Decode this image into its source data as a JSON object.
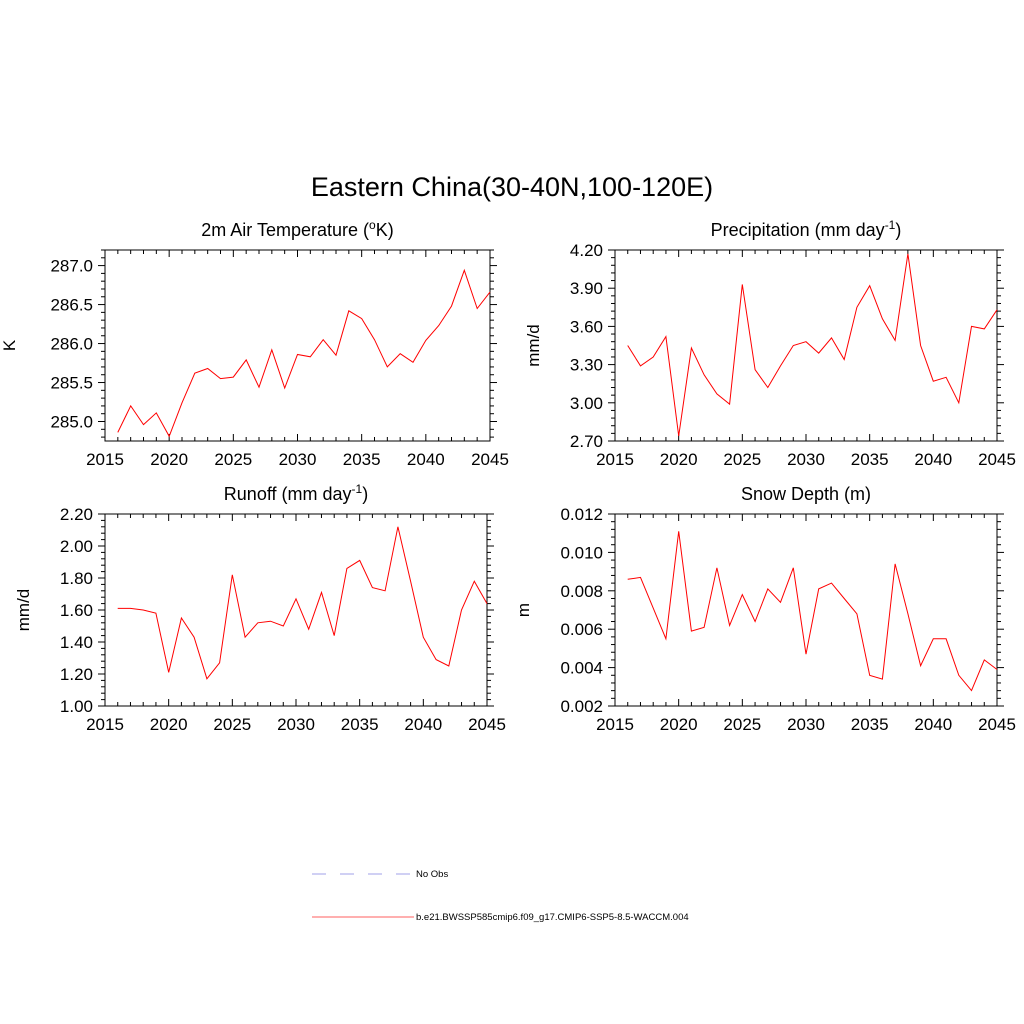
{
  "title": "Eastern China(30-40N,100-120E)",
  "chart_data": [
    {
      "id": "temp",
      "type": "line",
      "title": "2m Air Temperature (",
      "title_sup": "o",
      "title_end": "K)",
      "ylabel": "K",
      "xlim": [
        2015,
        2045
      ],
      "ylim": [
        284.75,
        287.2
      ],
      "yticks": [
        285.0,
        285.5,
        286.0,
        286.5,
        287.0
      ],
      "ytick_labels": [
        "285.0",
        "285.5",
        "286.0",
        "286.5",
        "287.0"
      ],
      "xticks": [
        2015,
        2020,
        2025,
        2030,
        2035,
        2040,
        2045
      ],
      "xtick_labels": [
        "2015",
        "2020",
        "2025",
        "2030",
        "2035",
        "2040",
        "2045"
      ],
      "series": [
        {
          "name": "b.e21.BWSSP585cmip6.f09_g17.CMIP6-SSP5-8.5-WACCM.004",
          "color": "#ff0000",
          "x": [
            2016,
            2017,
            2018,
            2019,
            2020,
            2021,
            2022,
            2023,
            2024,
            2025,
            2026,
            2027,
            2028,
            2029,
            2030,
            2031,
            2032,
            2033,
            2034,
            2035,
            2036,
            2037,
            2038,
            2039,
            2040,
            2041,
            2042,
            2043,
            2044,
            2045
          ],
          "values": [
            284.86,
            285.2,
            284.96,
            285.11,
            284.81,
            285.24,
            285.62,
            285.68,
            285.55,
            285.57,
            285.79,
            285.44,
            285.92,
            285.43,
            285.86,
            285.83,
            286.05,
            285.85,
            286.42,
            286.32,
            286.05,
            285.7,
            285.87,
            285.76,
            286.04,
            286.23,
            286.48,
            286.94,
            286.45,
            286.66
          ]
        }
      ]
    },
    {
      "id": "precip",
      "type": "line",
      "title": "Precipitation (mm day",
      "title_sup": "-1",
      "title_end": ")",
      "ylabel": "mm/d",
      "xlim": [
        2015,
        2045
      ],
      "ylim": [
        2.7,
        4.2
      ],
      "yticks": [
        2.7,
        3.0,
        3.3,
        3.6,
        3.9,
        4.2
      ],
      "ytick_labels": [
        "2.70",
        "3.00",
        "3.30",
        "3.60",
        "3.90",
        "4.20"
      ],
      "xticks": [
        2015,
        2020,
        2025,
        2030,
        2035,
        2040,
        2045
      ],
      "xtick_labels": [
        "2015",
        "2020",
        "2025",
        "2030",
        "2035",
        "2040",
        "2045"
      ],
      "series": [
        {
          "name": "b.e21.BWSSP585cmip6.f09_g17.CMIP6-SSP5-8.5-WACCM.004",
          "color": "#ff0000",
          "x": [
            2016,
            2017,
            2018,
            2019,
            2020,
            2021,
            2022,
            2023,
            2024,
            2025,
            2026,
            2027,
            2028,
            2029,
            2030,
            2031,
            2032,
            2033,
            2034,
            2035,
            2036,
            2037,
            2038,
            2039,
            2040,
            2041,
            2042,
            2043,
            2044,
            2045
          ],
          "values": [
            3.45,
            3.29,
            3.36,
            3.52,
            2.74,
            3.43,
            3.22,
            3.07,
            2.99,
            3.93,
            3.26,
            3.12,
            3.29,
            3.45,
            3.48,
            3.39,
            3.51,
            3.34,
            3.75,
            3.92,
            3.66,
            3.49,
            4.17,
            3.45,
            3.17,
            3.2,
            3.0,
            3.6,
            3.58,
            3.73
          ]
        }
      ]
    },
    {
      "id": "runoff",
      "type": "line",
      "title": "Runoff (mm day",
      "title_sup": "-1",
      "title_end": ")",
      "ylabel": "mm/d",
      "xlim": [
        2015,
        2045
      ],
      "ylim": [
        1.0,
        2.2
      ],
      "yticks": [
        1.0,
        1.2,
        1.4,
        1.6,
        1.8,
        2.0,
        2.2
      ],
      "ytick_labels": [
        "1.00",
        "1.20",
        "1.40",
        "1.60",
        "1.80",
        "2.00",
        "2.20"
      ],
      "xticks": [
        2015,
        2020,
        2025,
        2030,
        2035,
        2040,
        2045
      ],
      "xtick_labels": [
        "2015",
        "2020",
        "2025",
        "2030",
        "2035",
        "2040",
        "2045"
      ],
      "series": [
        {
          "name": "b.e21.BWSSP585cmip6.f09_g17.CMIP6-SSP5-8.5-WACCM.004",
          "color": "#ff0000",
          "x": [
            2016,
            2017,
            2018,
            2019,
            2020,
            2021,
            2022,
            2023,
            2024,
            2025,
            2026,
            2027,
            2028,
            2029,
            2030,
            2031,
            2032,
            2033,
            2034,
            2035,
            2036,
            2037,
            2038,
            2039,
            2040,
            2041,
            2042,
            2043,
            2044,
            2045
          ],
          "values": [
            1.61,
            1.61,
            1.6,
            1.58,
            1.21,
            1.55,
            1.43,
            1.17,
            1.27,
            1.82,
            1.43,
            1.52,
            1.53,
            1.5,
            1.67,
            1.48,
            1.71,
            1.44,
            1.86,
            1.91,
            1.74,
            1.72,
            2.12,
            1.78,
            1.43,
            1.29,
            1.25,
            1.6,
            1.78,
            1.64
          ]
        }
      ]
    },
    {
      "id": "snow",
      "type": "line",
      "title": "Snow Depth (m)",
      "title_sup": "",
      "title_end": "",
      "ylabel": "m",
      "xlim": [
        2015,
        2045
      ],
      "ylim": [
        0.002,
        0.012
      ],
      "yticks": [
        0.002,
        0.004,
        0.006,
        0.008,
        0.01,
        0.012
      ],
      "ytick_labels": [
        "0.002",
        "0.004",
        "0.006",
        "0.008",
        "0.010",
        "0.012"
      ],
      "xticks": [
        2015,
        2020,
        2025,
        2030,
        2035,
        2040,
        2045
      ],
      "xtick_labels": [
        "2015",
        "2020",
        "2025",
        "2030",
        "2035",
        "2040",
        "2045"
      ],
      "series": [
        {
          "name": "b.e21.BWSSP585cmip6.f09_g17.CMIP6-SSP5-8.5-WACCM.004",
          "color": "#ff0000",
          "x": [
            2016,
            2017,
            2018,
            2019,
            2020,
            2021,
            2022,
            2023,
            2024,
            2025,
            2026,
            2027,
            2028,
            2029,
            2030,
            2031,
            2032,
            2033,
            2034,
            2035,
            2036,
            2037,
            2038,
            2039,
            2040,
            2041,
            2042,
            2043,
            2044,
            2045
          ],
          "values": [
            0.0086,
            0.0087,
            0.0071,
            0.0055,
            0.0111,
            0.0059,
            0.0061,
            0.0092,
            0.0062,
            0.0078,
            0.0064,
            0.0081,
            0.0074,
            0.0092,
            0.0047,
            0.0081,
            0.0084,
            0.0076,
            0.0068,
            0.0036,
            0.0034,
            0.0094,
            0.0068,
            0.0041,
            0.0055,
            0.0055,
            0.0036,
            0.0028,
            0.0044,
            0.0039
          ]
        }
      ]
    }
  ],
  "legend": {
    "items": [
      {
        "label": "No Obs",
        "style": "dashed",
        "color": "#b3b3ee"
      },
      {
        "label": "b.e21.BWSSP585cmip6.f09_g17.CMIP6-SSP5-8.5-WACCM.004",
        "style": "solid",
        "color": "#ff7f7f"
      }
    ]
  }
}
